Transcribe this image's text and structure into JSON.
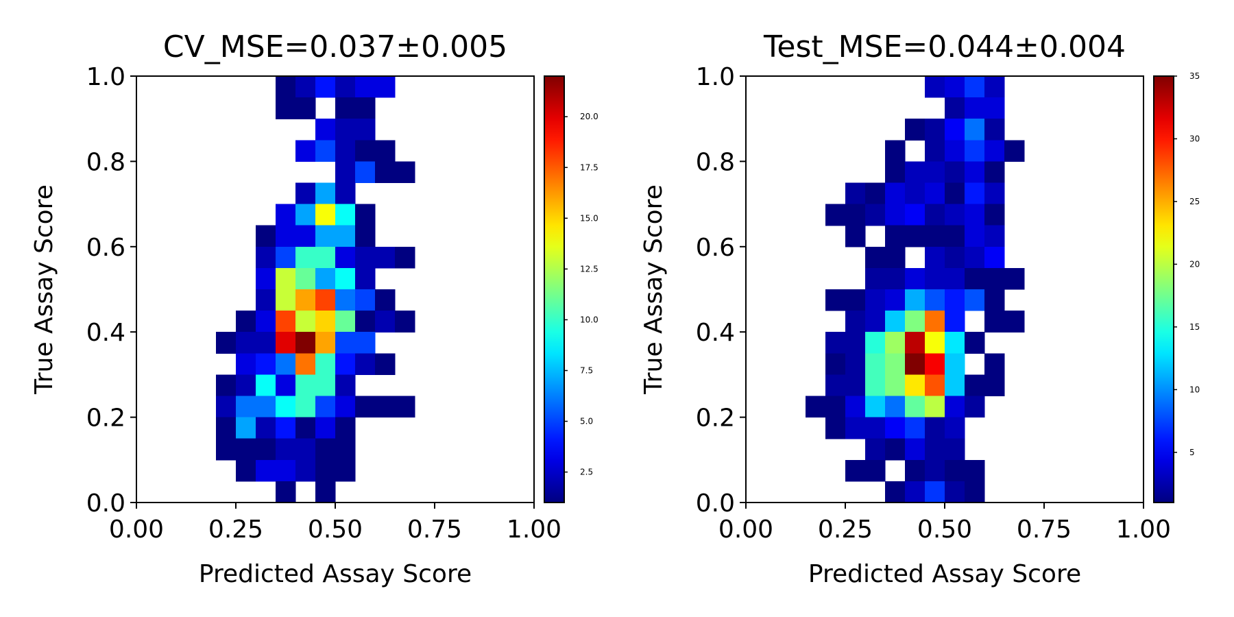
{
  "chart_data": [
    {
      "type": "heatmap",
      "title": "CV_MSE=0.037±0.005",
      "xlabel": "Predicted Assay Score",
      "ylabel": "True Assay Score",
      "xlim": [
        0,
        1
      ],
      "ylim": [
        0,
        1
      ],
      "xticks": [
        "0.00",
        "0.25",
        "0.50",
        "0.75",
        "1.00"
      ],
      "yticks": [
        "0.0",
        "0.2",
        "0.4",
        "0.6",
        "0.8",
        "1.0"
      ],
      "colormap": "jet",
      "bins": 20,
      "colorbar": {
        "min": 1,
        "max": 22,
        "ticks": [
          "2.5",
          "5.0",
          "7.5",
          "10.0",
          "12.5",
          "15.0",
          "17.5",
          "20.0"
        ]
      },
      "cells": [
        [
          7,
          0,
          1
        ],
        [
          8,
          0,
          2
        ],
        [
          9,
          0,
          4
        ],
        [
          10,
          0,
          2
        ],
        [
          11,
          0,
          3
        ],
        [
          12,
          0,
          3
        ],
        [
          7,
          1,
          1
        ],
        [
          8,
          1,
          1
        ],
        [
          10,
          1,
          1
        ],
        [
          11,
          1,
          1
        ],
        [
          9,
          2,
          3
        ],
        [
          10,
          2,
          2
        ],
        [
          11,
          2,
          2
        ],
        [
          8,
          3,
          3
        ],
        [
          9,
          3,
          5
        ],
        [
          10,
          3,
          2
        ],
        [
          11,
          3,
          1
        ],
        [
          12,
          3,
          1
        ],
        [
          10,
          4,
          2
        ],
        [
          11,
          4,
          5
        ],
        [
          12,
          4,
          1
        ],
        [
          13,
          4,
          1
        ],
        [
          8,
          5,
          2
        ],
        [
          9,
          5,
          7
        ],
        [
          10,
          5,
          2
        ],
        [
          7,
          6,
          3
        ],
        [
          8,
          6,
          7
        ],
        [
          9,
          6,
          14
        ],
        [
          10,
          6,
          9
        ],
        [
          11,
          6,
          1
        ],
        [
          6,
          7,
          1
        ],
        [
          7,
          7,
          3
        ],
        [
          8,
          7,
          3
        ],
        [
          9,
          7,
          7
        ],
        [
          10,
          7,
          7
        ],
        [
          11,
          7,
          1
        ],
        [
          6,
          8,
          2
        ],
        [
          7,
          8,
          5
        ],
        [
          8,
          8,
          10
        ],
        [
          9,
          8,
          10
        ],
        [
          10,
          8,
          3
        ],
        [
          11,
          8,
          2
        ],
        [
          12,
          8,
          2
        ],
        [
          13,
          8,
          1
        ],
        [
          6,
          9,
          3
        ],
        [
          7,
          9,
          13
        ],
        [
          8,
          9,
          11
        ],
        [
          9,
          9,
          7
        ],
        [
          10,
          9,
          9
        ],
        [
          11,
          9,
          2
        ],
        [
          6,
          10,
          2
        ],
        [
          7,
          10,
          13
        ],
        [
          8,
          10,
          16
        ],
        [
          9,
          10,
          18
        ],
        [
          10,
          10,
          6
        ],
        [
          11,
          10,
          5
        ],
        [
          12,
          10,
          1
        ],
        [
          5,
          11,
          1
        ],
        [
          6,
          11,
          3
        ],
        [
          7,
          11,
          18
        ],
        [
          8,
          11,
          13
        ],
        [
          9,
          11,
          15
        ],
        [
          10,
          11,
          11
        ],
        [
          11,
          11,
          1
        ],
        [
          12,
          11,
          2
        ],
        [
          13,
          11,
          1
        ],
        [
          4,
          12,
          1
        ],
        [
          5,
          12,
          2
        ],
        [
          6,
          12,
          2
        ],
        [
          7,
          12,
          20
        ],
        [
          8,
          12,
          22
        ],
        [
          9,
          12,
          16
        ],
        [
          10,
          12,
          5
        ],
        [
          11,
          12,
          5
        ],
        [
          5,
          13,
          3
        ],
        [
          6,
          13,
          4
        ],
        [
          7,
          13,
          6
        ],
        [
          8,
          13,
          17
        ],
        [
          9,
          13,
          10
        ],
        [
          10,
          13,
          4
        ],
        [
          11,
          13,
          2
        ],
        [
          12,
          13,
          1
        ],
        [
          4,
          14,
          1
        ],
        [
          5,
          14,
          2
        ],
        [
          6,
          14,
          9
        ],
        [
          7,
          14,
          3
        ],
        [
          8,
          14,
          10
        ],
        [
          9,
          14,
          10
        ],
        [
          10,
          14,
          2
        ],
        [
          4,
          15,
          2
        ],
        [
          5,
          15,
          6
        ],
        [
          6,
          15,
          6
        ],
        [
          7,
          15,
          9
        ],
        [
          8,
          15,
          10
        ],
        [
          9,
          15,
          5
        ],
        [
          10,
          15,
          3
        ],
        [
          11,
          15,
          1
        ],
        [
          12,
          15,
          1
        ],
        [
          13,
          15,
          1
        ],
        [
          4,
          16,
          1
        ],
        [
          5,
          16,
          7
        ],
        [
          6,
          16,
          2
        ],
        [
          7,
          16,
          4
        ],
        [
          8,
          16,
          1
        ],
        [
          9,
          16,
          3
        ],
        [
          10,
          16,
          1
        ],
        [
          4,
          17,
          1
        ],
        [
          5,
          17,
          1
        ],
        [
          6,
          17,
          1
        ],
        [
          7,
          17,
          2
        ],
        [
          8,
          17,
          2
        ],
        [
          9,
          17,
          1
        ],
        [
          10,
          17,
          1
        ],
        [
          5,
          18,
          1
        ],
        [
          6,
          18,
          3
        ],
        [
          7,
          18,
          3
        ],
        [
          8,
          18,
          2
        ],
        [
          9,
          18,
          1
        ],
        [
          10,
          18,
          1
        ],
        [
          7,
          19,
          1
        ],
        [
          9,
          19,
          1
        ]
      ]
    },
    {
      "type": "heatmap",
      "title": "Test_MSE=0.044±0.004",
      "xlabel": "Predicted Assay Score",
      "ylabel": "True Assay Score",
      "xlim": [
        0,
        1
      ],
      "ylim": [
        0,
        1
      ],
      "xticks": [
        "0.00",
        "0.25",
        "0.50",
        "0.75",
        "1.00"
      ],
      "yticks": [
        "0.0",
        "0.2",
        "0.4",
        "0.6",
        "0.8",
        "1.0"
      ],
      "colormap": "jet",
      "bins": 20,
      "colorbar": {
        "min": 1,
        "max": 35,
        "ticks": [
          "5",
          "10",
          "15",
          "20",
          "25",
          "30",
          "35"
        ]
      },
      "cells": [
        [
          9,
          0,
          3
        ],
        [
          10,
          0,
          4
        ],
        [
          11,
          0,
          7
        ],
        [
          12,
          0,
          3
        ],
        [
          10,
          1,
          2
        ],
        [
          11,
          1,
          4
        ],
        [
          12,
          1,
          4
        ],
        [
          8,
          2,
          1
        ],
        [
          9,
          2,
          2
        ],
        [
          10,
          2,
          5
        ],
        [
          11,
          2,
          9
        ],
        [
          12,
          2,
          2
        ],
        [
          7,
          3,
          1
        ],
        [
          9,
          3,
          2
        ],
        [
          10,
          3,
          4
        ],
        [
          11,
          3,
          7
        ],
        [
          12,
          3,
          4
        ],
        [
          13,
          3,
          1
        ],
        [
          7,
          4,
          1
        ],
        [
          8,
          4,
          3
        ],
        [
          9,
          4,
          3
        ],
        [
          10,
          4,
          2
        ],
        [
          11,
          4,
          4
        ],
        [
          12,
          4,
          1
        ],
        [
          5,
          5,
          2
        ],
        [
          6,
          5,
          1
        ],
        [
          7,
          5,
          4
        ],
        [
          8,
          5,
          3
        ],
        [
          9,
          5,
          4
        ],
        [
          10,
          5,
          1
        ],
        [
          11,
          5,
          6
        ],
        [
          12,
          5,
          3
        ],
        [
          4,
          6,
          1
        ],
        [
          5,
          6,
          1
        ],
        [
          6,
          6,
          2
        ],
        [
          7,
          6,
          4
        ],
        [
          8,
          6,
          5
        ],
        [
          9,
          6,
          2
        ],
        [
          10,
          6,
          3
        ],
        [
          11,
          6,
          4
        ],
        [
          12,
          6,
          1
        ],
        [
          5,
          7,
          1
        ],
        [
          7,
          7,
          1
        ],
        [
          8,
          7,
          1
        ],
        [
          9,
          7,
          1
        ],
        [
          10,
          7,
          1
        ],
        [
          11,
          7,
          4
        ],
        [
          12,
          7,
          3
        ],
        [
          6,
          8,
          1
        ],
        [
          7,
          8,
          1
        ],
        [
          9,
          8,
          3
        ],
        [
          10,
          8,
          2
        ],
        [
          11,
          8,
          3
        ],
        [
          12,
          8,
          5
        ],
        [
          6,
          9,
          2
        ],
        [
          7,
          9,
          2
        ],
        [
          8,
          9,
          4
        ],
        [
          9,
          9,
          3
        ],
        [
          10,
          9,
          3
        ],
        [
          11,
          9,
          1
        ],
        [
          12,
          9,
          1
        ],
        [
          13,
          9,
          1
        ],
        [
          4,
          10,
          1
        ],
        [
          5,
          10,
          1
        ],
        [
          6,
          10,
          3
        ],
        [
          7,
          10,
          4
        ],
        [
          8,
          10,
          11
        ],
        [
          9,
          10,
          8
        ],
        [
          10,
          10,
          6
        ],
        [
          11,
          10,
          8
        ],
        [
          12,
          10,
          1
        ],
        [
          5,
          11,
          2
        ],
        [
          6,
          11,
          3
        ],
        [
          7,
          11,
          12
        ],
        [
          8,
          11,
          18
        ],
        [
          9,
          11,
          27
        ],
        [
          10,
          11,
          6
        ],
        [
          12,
          11,
          1
        ],
        [
          13,
          11,
          1
        ],
        [
          4,
          12,
          2
        ],
        [
          5,
          12,
          2
        ],
        [
          6,
          12,
          15
        ],
        [
          7,
          12,
          19
        ],
        [
          8,
          12,
          33
        ],
        [
          9,
          12,
          22
        ],
        [
          10,
          12,
          13
        ],
        [
          11,
          12,
          1
        ],
        [
          4,
          13,
          1
        ],
        [
          5,
          13,
          2
        ],
        [
          6,
          13,
          16
        ],
        [
          7,
          13,
          18
        ],
        [
          8,
          13,
          35
        ],
        [
          9,
          13,
          31
        ],
        [
          10,
          13,
          12
        ],
        [
          12,
          13,
          1
        ],
        [
          4,
          14,
          2
        ],
        [
          5,
          14,
          2
        ],
        [
          6,
          14,
          16
        ],
        [
          7,
          14,
          18
        ],
        [
          8,
          14,
          23
        ],
        [
          9,
          14,
          28
        ],
        [
          10,
          14,
          12
        ],
        [
          11,
          14,
          1
        ],
        [
          12,
          14,
          1
        ],
        [
          3,
          15,
          1
        ],
        [
          4,
          15,
          1
        ],
        [
          5,
          15,
          4
        ],
        [
          6,
          15,
          12
        ],
        [
          7,
          15,
          9
        ],
        [
          8,
          15,
          17
        ],
        [
          9,
          15,
          20
        ],
        [
          10,
          15,
          4
        ],
        [
          11,
          15,
          2
        ],
        [
          4,
          16,
          1
        ],
        [
          5,
          16,
          3
        ],
        [
          6,
          16,
          3
        ],
        [
          7,
          16,
          5
        ],
        [
          8,
          16,
          7
        ],
        [
          9,
          16,
          2
        ],
        [
          10,
          16,
          3
        ],
        [
          6,
          17,
          2
        ],
        [
          7,
          17,
          1
        ],
        [
          8,
          17,
          4
        ],
        [
          9,
          17,
          2
        ],
        [
          10,
          17,
          2
        ],
        [
          5,
          18,
          1
        ],
        [
          6,
          18,
          1
        ],
        [
          8,
          18,
          1
        ],
        [
          9,
          18,
          2
        ],
        [
          10,
          18,
          1
        ],
        [
          11,
          18,
          1
        ],
        [
          7,
          19,
          1
        ],
        [
          8,
          19,
          3
        ],
        [
          9,
          19,
          7
        ],
        [
          10,
          19,
          2
        ],
        [
          11,
          19,
          1
        ]
      ]
    }
  ]
}
